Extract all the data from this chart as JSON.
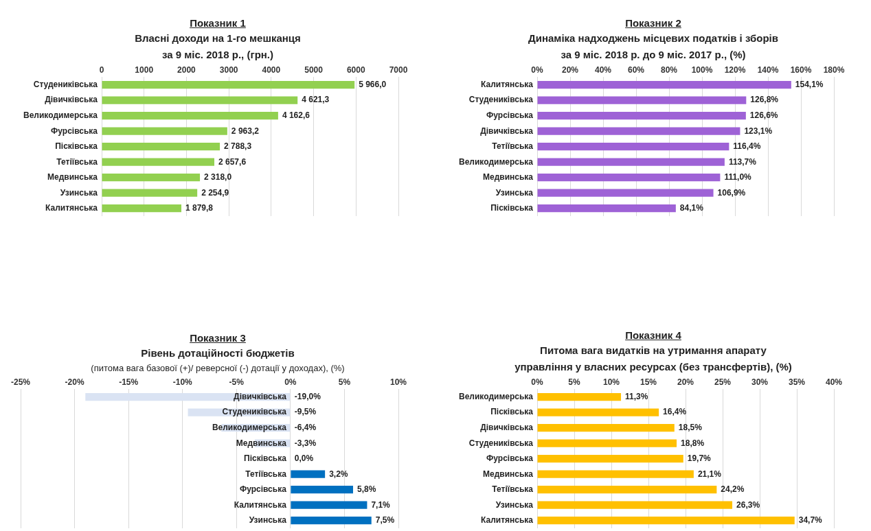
{
  "chart_data": [
    {
      "type": "bar",
      "orientation": "horizontal",
      "title": "Показник 1",
      "subtitle": "Власні доходи на 1-го мешканця\nза 9 міс. 2018 р., (грн.)",
      "categories": [
        "Студениківська",
        "Дівичківська",
        "Великодимерська",
        "Фурсівська",
        "Пісківська",
        "Тетіївська",
        "Медвинська",
        "Узинська",
        "Калитянська"
      ],
      "values": [
        5966.0,
        4621.3,
        4162.6,
        2963.2,
        2788.3,
        2657.6,
        2318.0,
        2254.9,
        1879.8
      ],
      "value_labels": [
        "5 966,0",
        "4 621,3",
        "4 162,6",
        "2 963,2",
        "2 788,3",
        "2 657,6",
        "2 318,0",
        "2 254,9",
        "1 879,8"
      ],
      "color": "#92d050",
      "xlim": [
        0,
        7000
      ],
      "xticks": [
        0,
        1000,
        2000,
        3000,
        4000,
        5000,
        6000,
        7000
      ],
      "grid": "x"
    },
    {
      "type": "bar",
      "orientation": "horizontal",
      "title": "Показник 2",
      "subtitle": "Динаміка надходжень місцевих податків і зборів\nза 9 міс. 2018 р. до 9 міс. 2017 р., (%)",
      "categories": [
        "Калитянська",
        "Студениківська",
        "Фурсівська",
        "Дівичківська",
        "Тетіївська",
        "Великодимерська",
        "Медвинська",
        "Узинська",
        "Пісківська"
      ],
      "values": [
        154.1,
        126.8,
        126.6,
        123.1,
        116.4,
        113.7,
        111.0,
        106.9,
        84.1
      ],
      "value_labels": [
        "154,1%",
        "126,8%",
        "126,6%",
        "123,1%",
        "116,4%",
        "113,7%",
        "111,0%",
        "106,9%",
        "84,1%"
      ],
      "color": "#9e62d6",
      "xlim": [
        0,
        180
      ],
      "xticks": [
        {
          "value": 0,
          "label": "0%"
        },
        {
          "value": 20,
          "label": "20%"
        },
        {
          "value": 40,
          "label": "40%"
        },
        {
          "value": 60,
          "label": "60%"
        },
        {
          "value": 80,
          "label": "80%"
        },
        {
          "value": 100,
          "label": "100%"
        },
        {
          "value": 120,
          "label": "120%"
        },
        {
          "value": 140,
          "label": "140%"
        },
        {
          "value": 160,
          "label": "160%"
        },
        {
          "value": 180,
          "label": "180%"
        }
      ],
      "grid": "x"
    },
    {
      "type": "bar",
      "orientation": "horizontal",
      "title": "Показник 3",
      "subtitle": "Рівень дотаційності бюджетів",
      "annotations": [
        "(питома вага базової (+)/ реверсної (-) дотації  у доходах), (%)"
      ],
      "categories": [
        "Дівичківська",
        "Студениківська",
        "Великодимерська",
        "Медвинська",
        "Пісківська",
        "Тетіївська",
        "Фурсівська",
        "Калитянська",
        "Узинська"
      ],
      "values": [
        -19.0,
        -9.5,
        -6.4,
        -3.3,
        0.0,
        3.2,
        5.8,
        7.1,
        7.5
      ],
      "value_labels": [
        "-19,0%",
        "-9,5%",
        "-6,4%",
        "-3,3%",
        "0,0%",
        "3,2%",
        "5,8%",
        "7,1%",
        "7,5%"
      ],
      "colors": [
        "#dae3f3",
        "#dae3f3",
        "#dae3f3",
        "#dae3f3",
        "#dae3f3",
        "#0070c0",
        "#0070c0",
        "#0070c0",
        "#0070c0"
      ],
      "xlim": [
        -25,
        10
      ],
      "xticks": [
        {
          "value": -25,
          "label": "-25%"
        },
        {
          "value": -20,
          "label": "-20%"
        },
        {
          "value": -15,
          "label": "-15%"
        },
        {
          "value": -10,
          "label": "-10%"
        },
        {
          "value": -5,
          "label": "-5%"
        },
        {
          "value": 0,
          "label": "0%"
        },
        {
          "value": 5,
          "label": "5%"
        },
        {
          "value": 10,
          "label": "10%"
        }
      ],
      "grid": "x"
    },
    {
      "type": "bar",
      "orientation": "horizontal",
      "title": "Показник 4",
      "subtitle": "Питома вага видатків на утримання апарату\nуправління у власних ресурсах (без трансфертів), (%)",
      "categories": [
        "Великодимерська",
        "Пісківська",
        "Дівичківська",
        "Студениківська",
        "Фурсівська",
        "Медвинська",
        "Тетіївська",
        "Узинська",
        "Калитянська"
      ],
      "values": [
        11.3,
        16.4,
        18.5,
        18.8,
        19.7,
        21.1,
        24.2,
        26.3,
        34.7
      ],
      "value_labels": [
        "11,3%",
        "16,4%",
        "18,5%",
        "18,8%",
        "19,7%",
        "21,1%",
        "24,2%",
        "26,3%",
        "34,7%"
      ],
      "color": "#ffc000",
      "xlim": [
        0,
        40
      ],
      "xticks": [
        {
          "value": 0,
          "label": "0%"
        },
        {
          "value": 5,
          "label": "5%"
        },
        {
          "value": 10,
          "label": "10%"
        },
        {
          "value": 15,
          "label": "15%"
        },
        {
          "value": 20,
          "label": "20%"
        },
        {
          "value": 25,
          "label": "25%"
        },
        {
          "value": 30,
          "label": "30%"
        },
        {
          "value": 35,
          "label": "35%"
        },
        {
          "value": 40,
          "label": "40%"
        }
      ],
      "grid": "x"
    }
  ]
}
